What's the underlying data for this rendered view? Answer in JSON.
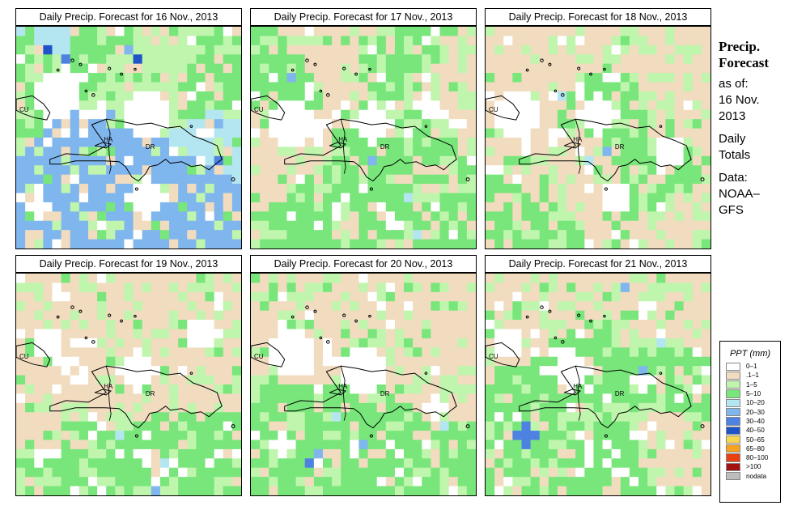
{
  "panels": [
    {
      "title": "Daily Precip. Forecast for  16 Nov., 2013"
    },
    {
      "title": "Daily Precip. Forecast for  17 Nov., 2013"
    },
    {
      "title": "Daily Precip. Forecast for  18 Nov., 2013"
    },
    {
      "title": "Daily Precip. Forecast for  19 Nov., 2013"
    },
    {
      "title": "Daily Precip. Forecast for  20 Nov., 2013"
    },
    {
      "title": "Daily Precip. Forecast for  21 Nov., 2013"
    }
  ],
  "map_labels": {
    "cuba": "CU",
    "haiti": "HA",
    "dominican_republic": "DR"
  },
  "side": {
    "title_line1": "Precip.",
    "title_line2": "Forecast",
    "asof_line1": "as of:",
    "asof_line2": "16 Nov.",
    "asof_line3": "2013",
    "totals_line1": "Daily",
    "totals_line2": "Totals",
    "data_line1": "Data:",
    "data_line2": "NOAA–",
    "data_line3": "GFS"
  },
  "legend": {
    "title": "PPT (mm)",
    "items": [
      {
        "label": "0–1",
        "color": "#ffffff"
      },
      {
        "label": ".1–1",
        "color": "#f1dcbf"
      },
      {
        "label": "1–5",
        "color": "#bff5ad"
      },
      {
        "label": "5–10",
        "color": "#78e67a"
      },
      {
        "label": "10–20",
        "color": "#b4e6f2"
      },
      {
        "label": "20–30",
        "color": "#7fb6ee"
      },
      {
        "label": "30–40",
        "color": "#4d82e2"
      },
      {
        "label": "40–50",
        "color": "#1e54c8"
      },
      {
        "label": "50–65",
        "color": "#f7d752"
      },
      {
        "label": "65–80",
        "color": "#f7a320"
      },
      {
        "label": "80–100",
        "color": "#e8410f"
      },
      {
        "label": ">100",
        "color": "#a3120f"
      },
      {
        "label": "nodata",
        "color": "#bdbdbd"
      }
    ]
  }
}
